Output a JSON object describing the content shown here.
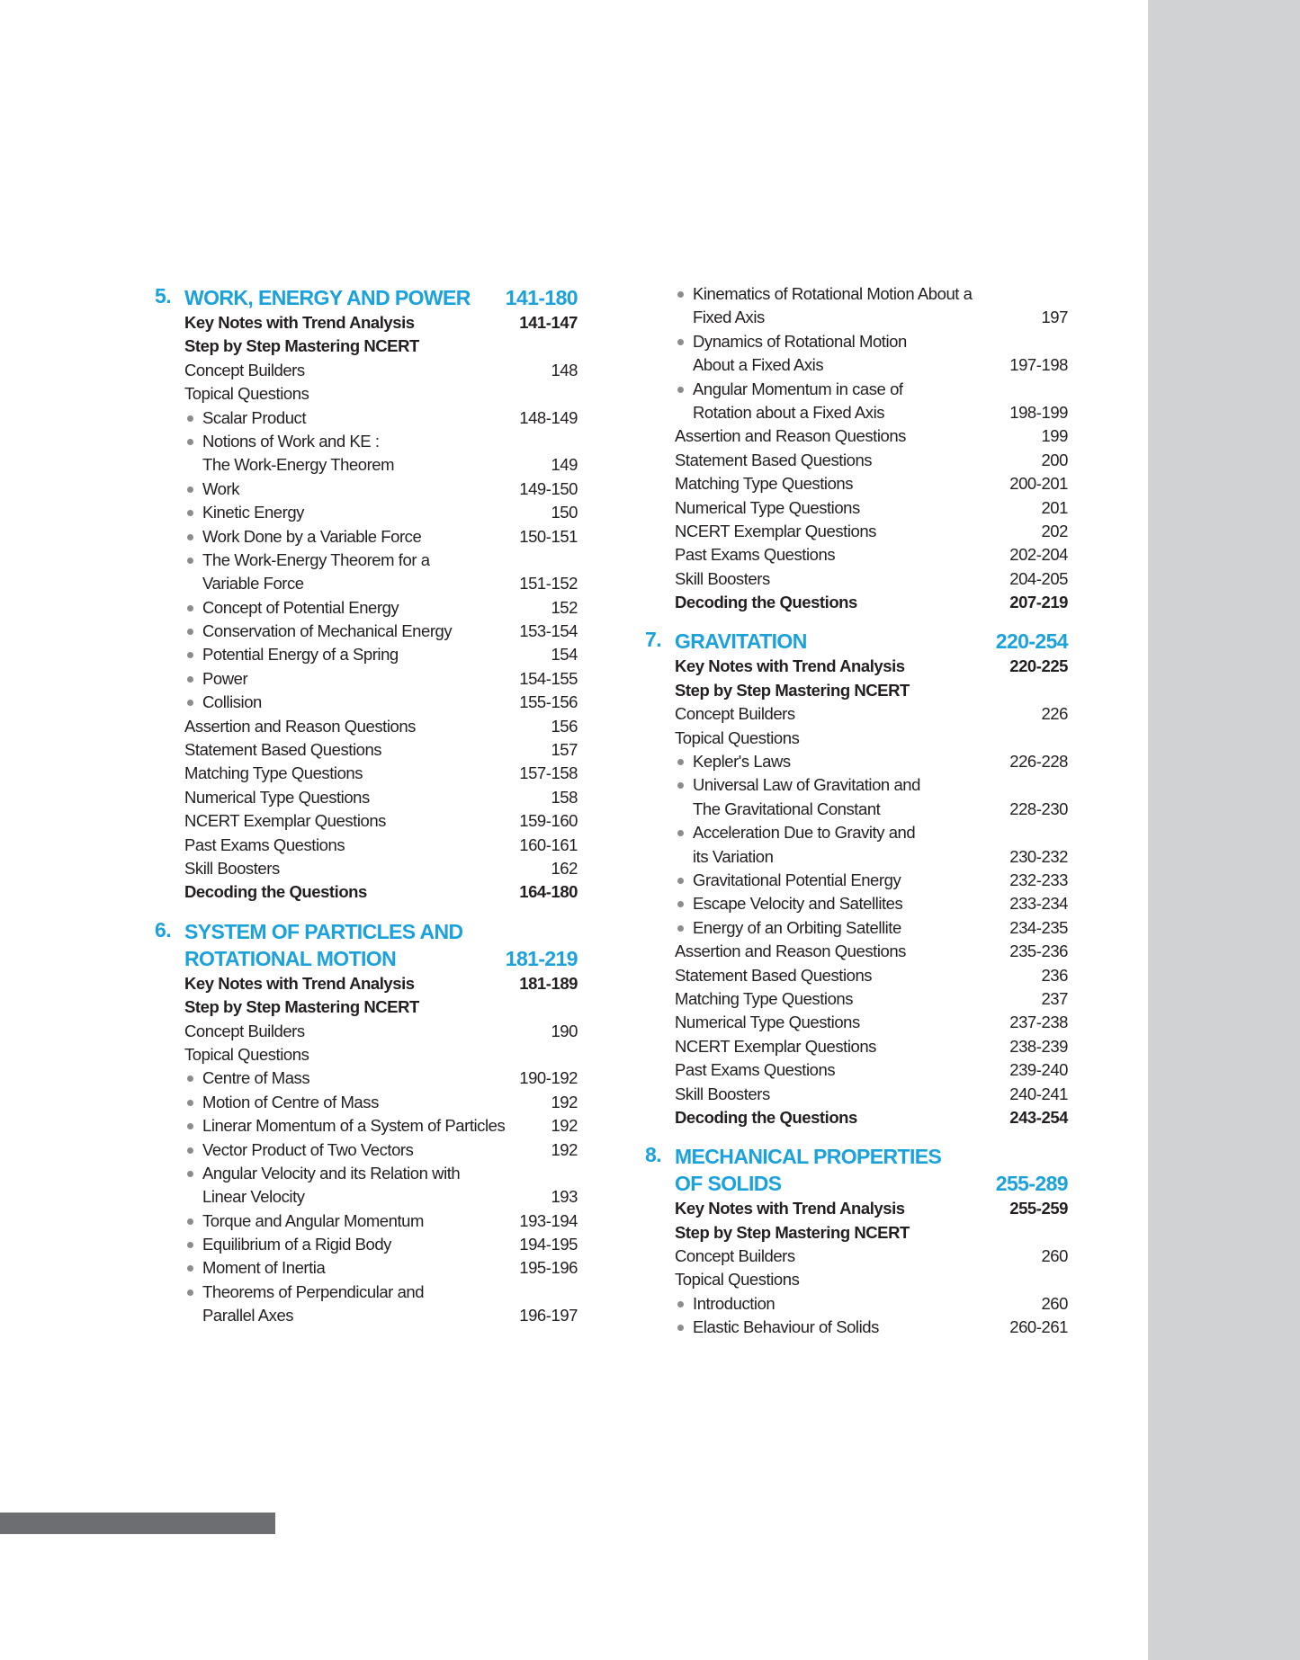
{
  "colors": {
    "heading": "#1ba1dc",
    "bullet": "#8a8c8e",
    "side_strip": "#d1d2d4",
    "footer_bar": "#6d6e71"
  },
  "columns": [
    [
      {
        "num": "5.",
        "title": [
          "WORK, ENERGY AND POWER"
        ],
        "pages": "141-180",
        "items": [
          {
            "t": "bold",
            "l": [
              "Key Notes with Trend Analysis"
            ],
            "p": "141-147"
          },
          {
            "t": "bold",
            "l": [
              "Step by Step Mastering NCERT"
            ],
            "p": ""
          },
          {
            "t": "plain",
            "l": [
              "Concept Builders"
            ],
            "p": "148"
          },
          {
            "t": "plain",
            "l": [
              "Topical Questions"
            ],
            "p": ""
          },
          {
            "t": "bullet",
            "l": [
              "Scalar Product"
            ],
            "p": "148-149"
          },
          {
            "t": "bullet",
            "l": [
              "Notions of Work and KE :",
              "The Work-Energy Theorem"
            ],
            "p": "149"
          },
          {
            "t": "bullet",
            "l": [
              "Work"
            ],
            "p": "149-150"
          },
          {
            "t": "bullet",
            "l": [
              "Kinetic Energy"
            ],
            "p": "150"
          },
          {
            "t": "bullet",
            "l": [
              "Work Done by a Variable Force"
            ],
            "p": "150-151"
          },
          {
            "t": "bullet",
            "l": [
              "The Work-Energy Theorem for a",
              "Variable Force"
            ],
            "p": "151-152"
          },
          {
            "t": "bullet",
            "l": [
              "Concept of Potential Energy"
            ],
            "p": "152"
          },
          {
            "t": "bullet",
            "l": [
              "Conservation of Mechanical Energy"
            ],
            "p": "153-154"
          },
          {
            "t": "bullet",
            "l": [
              "Potential Energy of a Spring"
            ],
            "p": "154"
          },
          {
            "t": "bullet",
            "l": [
              "Power"
            ],
            "p": "154-155"
          },
          {
            "t": "bullet",
            "l": [
              "Collision"
            ],
            "p": "155-156"
          },
          {
            "t": "plain",
            "l": [
              "Assertion and Reason Questions"
            ],
            "p": "156"
          },
          {
            "t": "plain",
            "l": [
              "Statement Based Questions"
            ],
            "p": "157"
          },
          {
            "t": "plain",
            "l": [
              "Matching Type Questions"
            ],
            "p": "157-158"
          },
          {
            "t": "plain",
            "l": [
              "Numerical Type Questions"
            ],
            "p": "158"
          },
          {
            "t": "plain",
            "l": [
              "NCERT Exemplar Questions"
            ],
            "p": "159-160"
          },
          {
            "t": "plain",
            "l": [
              "Past Exams Questions"
            ],
            "p": "160-161"
          },
          {
            "t": "plain",
            "l": [
              "Skill Boosters"
            ],
            "p": "162"
          },
          {
            "t": "bold",
            "l": [
              "Decoding the Questions"
            ],
            "p": "164-180"
          }
        ]
      },
      {
        "num": "6.",
        "title": [
          "SYSTEM OF PARTICLES AND",
          "ROTATIONAL MOTION"
        ],
        "pages": "181-219",
        "items": [
          {
            "t": "bold",
            "l": [
              "Key Notes with Trend Analysis"
            ],
            "p": "181-189"
          },
          {
            "t": "bold",
            "l": [
              "Step by Step Mastering NCERT"
            ],
            "p": ""
          },
          {
            "t": "plain",
            "l": [
              "Concept Builders"
            ],
            "p": "190"
          },
          {
            "t": "plain",
            "l": [
              "Topical Questions"
            ],
            "p": ""
          },
          {
            "t": "bullet",
            "l": [
              "Centre of Mass"
            ],
            "p": "190-192"
          },
          {
            "t": "bullet",
            "l": [
              "Motion of Centre of Mass"
            ],
            "p": "192"
          },
          {
            "t": "bullet",
            "l": [
              "Linerar Momentum of a System of Particles"
            ],
            "p": "192"
          },
          {
            "t": "bullet",
            "l": [
              "Vector Product of Two Vectors"
            ],
            "p": "192"
          },
          {
            "t": "bullet",
            "l": [
              "Angular Velocity and its Relation with",
              "Linear Velocity"
            ],
            "p": "193"
          },
          {
            "t": "bullet",
            "l": [
              "Torque and Angular Momentum"
            ],
            "p": "193-194"
          },
          {
            "t": "bullet",
            "l": [
              "Equilibrium of a Rigid Body"
            ],
            "p": "194-195"
          },
          {
            "t": "bullet",
            "l": [
              "Moment of Inertia"
            ],
            "p": "195-196"
          },
          {
            "t": "bullet",
            "l": [
              "Theorems of Perpendicular and",
              "Parallel Axes"
            ],
            "p": "196-197"
          }
        ]
      }
    ],
    [
      {
        "num": "",
        "title": [],
        "pages": "",
        "items": [
          {
            "t": "bullet",
            "l": [
              "Kinematics of Rotational Motion About a",
              "Fixed Axis"
            ],
            "p": "197"
          },
          {
            "t": "bullet",
            "l": [
              "Dynamics of Rotational Motion",
              "About a Fixed Axis"
            ],
            "p": "197-198"
          },
          {
            "t": "bullet",
            "l": [
              "Angular Momentum in case of",
              "Rotation about a Fixed Axis"
            ],
            "p": "198-199"
          },
          {
            "t": "plain",
            "l": [
              "Assertion and Reason Questions"
            ],
            "p": "199"
          },
          {
            "t": "plain",
            "l": [
              "Statement Based Questions"
            ],
            "p": "200"
          },
          {
            "t": "plain",
            "l": [
              "Matching Type Questions"
            ],
            "p": "200-201"
          },
          {
            "t": "plain",
            "l": [
              "Numerical Type Questions"
            ],
            "p": "201"
          },
          {
            "t": "plain",
            "l": [
              "NCERT Exemplar Questions"
            ],
            "p": "202"
          },
          {
            "t": "plain",
            "l": [
              "Past Exams Questions"
            ],
            "p": "202-204"
          },
          {
            "t": "plain",
            "l": [
              "Skill Boosters"
            ],
            "p": "204-205"
          },
          {
            "t": "bold",
            "l": [
              "Decoding the Questions"
            ],
            "p": "207-219"
          }
        ]
      },
      {
        "num": "7.",
        "title": [
          "GRAVITATION"
        ],
        "pages": "220-254",
        "items": [
          {
            "t": "bold",
            "l": [
              "Key Notes with Trend Analysis"
            ],
            "p": "220-225"
          },
          {
            "t": "bold",
            "l": [
              "Step by Step Mastering NCERT"
            ],
            "p": ""
          },
          {
            "t": "plain",
            "l": [
              "Concept Builders"
            ],
            "p": "226"
          },
          {
            "t": "plain",
            "l": [
              "Topical Questions"
            ],
            "p": ""
          },
          {
            "t": "bullet",
            "l": [
              "Kepler's Laws"
            ],
            "p": "226-228"
          },
          {
            "t": "bullet",
            "l": [
              "Universal Law of Gravitation and",
              "The Gravitational Constant"
            ],
            "p": "228-230"
          },
          {
            "t": "bullet",
            "l": [
              "Acceleration Due to Gravity and",
              "its Variation"
            ],
            "p": "230-232"
          },
          {
            "t": "bullet",
            "l": [
              "Gravitational Potential Energy"
            ],
            "p": "232-233"
          },
          {
            "t": "bullet",
            "l": [
              "Escape Velocity and Satellites"
            ],
            "p": "233-234"
          },
          {
            "t": "bullet",
            "l": [
              "Energy of an Orbiting Satellite"
            ],
            "p": "234-235"
          },
          {
            "t": "plain",
            "l": [
              "Assertion and Reason Questions"
            ],
            "p": "235-236"
          },
          {
            "t": "plain",
            "l": [
              "Statement Based Questions"
            ],
            "p": "236"
          },
          {
            "t": "plain",
            "l": [
              "Matching Type Questions"
            ],
            "p": "237"
          },
          {
            "t": "plain",
            "l": [
              "Numerical Type Questions"
            ],
            "p": "237-238"
          },
          {
            "t": "plain",
            "l": [
              "NCERT Exemplar Questions"
            ],
            "p": "238-239"
          },
          {
            "t": "plain",
            "l": [
              "Past Exams Questions"
            ],
            "p": "239-240"
          },
          {
            "t": "plain",
            "l": [
              "Skill Boosters"
            ],
            "p": "240-241"
          },
          {
            "t": "bold",
            "l": [
              "Decoding the Questions"
            ],
            "p": "243-254"
          }
        ]
      },
      {
        "num": "8.",
        "title": [
          "MECHANICAL PROPERTIES",
          "OF  SOLIDS"
        ],
        "pages": "255-289",
        "items": [
          {
            "t": "bold",
            "l": [
              "Key Notes with Trend Analysis"
            ],
            "p": "255-259"
          },
          {
            "t": "bold",
            "l": [
              "Step by Step Mastering NCERT"
            ],
            "p": ""
          },
          {
            "t": "plain",
            "l": [
              "Concept Builders"
            ],
            "p": "260"
          },
          {
            "t": "plain",
            "l": [
              "Topical Questions"
            ],
            "p": ""
          },
          {
            "t": "bullet",
            "l": [
              "Introduction"
            ],
            "p": "260"
          },
          {
            "t": "bullet",
            "l": [
              "Elastic Behaviour of Solids"
            ],
            "p": "260-261"
          }
        ]
      }
    ]
  ]
}
